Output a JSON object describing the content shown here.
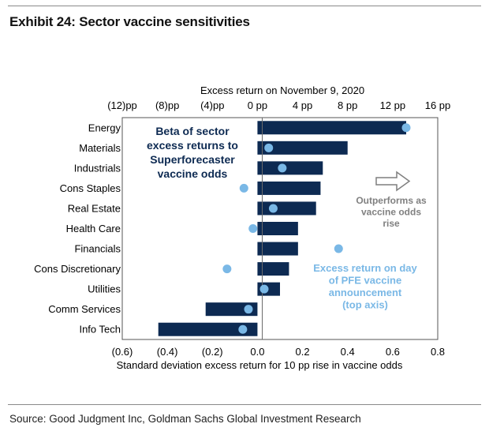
{
  "header": {
    "title": "Exhibit 24: Sector vaccine sensitivities"
  },
  "footer": {
    "source": "Source: Good Judgment Inc, Goldman Sachs Global Investment Research"
  },
  "chart_data": {
    "type": "bar",
    "orientation": "horizontal",
    "categories": [
      "Energy",
      "Materials",
      "Industrials",
      "Cons Staples",
      "Real Estate",
      "Health Care",
      "Financials",
      "Cons Discretionary",
      "Utilities",
      "Comm Services",
      "Info Tech"
    ],
    "series": [
      {
        "name": "Beta of sector excess returns to Superforecaster vaccine odds",
        "kind": "bar",
        "axis": "bottom",
        "color": "#0d2a52",
        "values": [
          0.66,
          0.4,
          0.29,
          0.28,
          0.26,
          0.18,
          0.18,
          0.14,
          0.1,
          -0.23,
          -0.44
        ]
      },
      {
        "name": "Excess return on day of PFE vaccine announcement (top axis)",
        "kind": "dot",
        "axis": "top",
        "color": "#7ab8e6",
        "values": [
          13.2,
          1.0,
          2.2,
          -1.2,
          1.4,
          -0.4,
          7.2,
          -2.7,
          0.6,
          -0.8,
          -1.3
        ]
      }
    ],
    "x_bottom": {
      "label": "Standard deviation excess return for 10 pp rise in vaccine odds",
      "range": [
        -0.6,
        0.8
      ],
      "ticks": [
        -0.6,
        -0.4,
        -0.2,
        0.0,
        0.2,
        0.4,
        0.6,
        0.8
      ],
      "tick_labels": [
        "(0.6)",
        "(0.4)",
        "(0.2)",
        "0.0",
        "0.2",
        "0.4",
        "0.6",
        "0.8"
      ]
    },
    "x_top": {
      "label": "Excess return on November 9, 2020",
      "range": [
        -12,
        16
      ],
      "ticks": [
        -12,
        -8,
        -4,
        0,
        4,
        8,
        12,
        16
      ],
      "tick_labels": [
        "(12)pp",
        "(8)pp",
        "(4)pp",
        "0 pp",
        "4 pp",
        "8 pp",
        "12 pp",
        "16 pp"
      ]
    },
    "annotations": {
      "bar_label": [
        "Beta of sector",
        "excess returns to",
        "Superforecaster",
        "vaccine odds"
      ],
      "arrow_label": [
        "Outperforms as",
        "vaccine odds",
        "rise"
      ],
      "dot_label": [
        "Excess return on day",
        "of PFE vaccine",
        "announcement",
        "(top axis)"
      ]
    },
    "colors": {
      "bar": "#0d2a52",
      "dot": "#7ab8e6",
      "annotation_gray": "#808080"
    },
    "grid": false
  }
}
